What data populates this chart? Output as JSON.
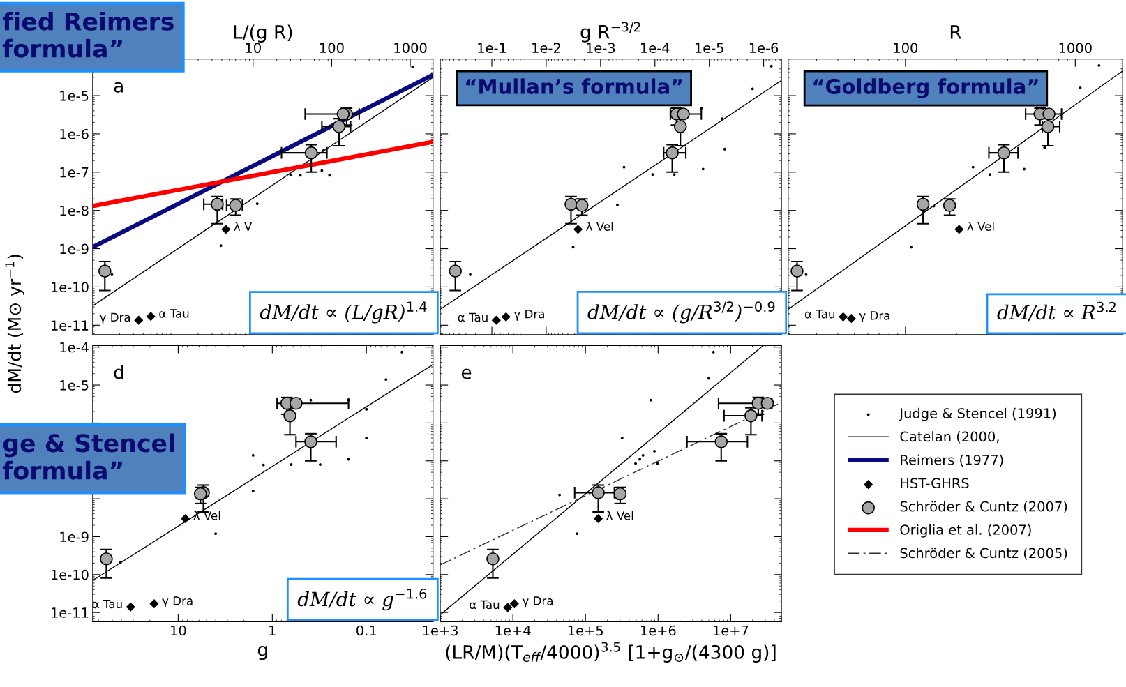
{
  "chart_data": [
    {
      "type": "scatter",
      "title": "fied Reimers\nformula”",
      "subtitle": "a",
      "xlabel": "L/(g R)",
      "ylabel": "dM/dt (M⊙ yr$^{−1}$)",
      "log": "xy",
      "legend": "right",
      "xlim": [
        0.091,
        1950
      ],
      "xticks": [
        10,
        100,
        1000
      ],
      "ylim": [
        5.7e-12,
        9e-05
      ],
      "yticks": [
        {
          "value": 1e-11,
          "label": "1e-11"
        },
        {
          "value": 1e-10,
          "label": "1e-10"
        },
        {
          "value": 1e-09,
          "label": "1e-9"
        },
        {
          "value": 1e-08,
          "label": "1e-8"
        },
        {
          "value": 1e-07,
          "label": "1e-7"
        },
        {
          "value": 1e-06,
          "label": "1e-6"
        },
        {
          "value": 1e-05,
          "label": "1e-5"
        }
      ],
      "series": [
        {
          "name": "Judge & Stencel (1991)",
          "type": "scatter",
          "marker": "circle",
          "color": "#000000",
          "x": [
            1070,
            30,
            40,
            75,
            94,
            79,
            11.3,
            3.9,
            0.16
          ],
          "values": [
            5.6e-05,
            8.5e-08,
            8.3e-08,
            1.1e-07,
            8.3e-08,
            3.7e-07,
            1.5e-08,
            1.2e-09,
            2.1e-10
          ]
        },
        {
          "name": "Catelan (2000,",
          "type": "line",
          "line_style": "solid",
          "color": "#000000",
          "x": [
            0.091,
            1950
          ],
          "values": [
            3.2e-11,
            3e-05
          ]
        },
        {
          "name": "Reimers (1977)",
          "type": "line",
          "line_style": "solid",
          "color": "#0a0a80",
          "x": [
            0.091,
            1950
          ],
          "values": [
            1.1e-09,
            3.5e-05
          ]
        },
        {
          "name": "HST-GHRS",
          "type": "scatter",
          "marker": "diamond",
          "color": "#000000",
          "x": [
            4.5,
            0.5,
            0.35
          ],
          "values": [
            3.2e-09,
            1.7e-11,
            1.35e-11
          ]
        },
        {
          "name": "Schröder & Cuntz (2007)",
          "type": "scatter",
          "marker": "circle",
          "color": "#a6a6a6",
          "x": [
            0.13,
            3.5,
            6.0,
            55,
            124,
            155,
            140
          ],
          "values": [
            2.6e-10,
            1.45e-08,
            1.35e-08,
            3.2e-07,
            1.55e-06,
            3.3e-06,
            3.3e-06
          ],
          "errors": [
            [
              8.1e-11,
              4.6e-10
            ],
            [
              4.5e-09,
              2.3e-08
            ],
            [
              7.5e-09,
              2e-08
            ],
            [
              1e-07,
              5.2e-07
            ],
            [
              4.9e-07,
              2.5e-06
            ],
            [
              1.7e-06,
              4.7e-06
            ],
            null
          ],
          "xerrors": [
            null,
            [
              2.36,
              4.1
            ],
            [
              4.6,
              7.3
            ],
            [
              23,
              87
            ],
            [
              75,
              174
            ],
            [
              46,
              224
            ],
            null
          ]
        },
        {
          "name": "Origlia et al. (2007)",
          "type": "line",
          "line_style": "solid",
          "color": "#ff0000",
          "x": [
            0.091,
            1950
          ],
          "values": [
            1.3e-08,
            6.2e-07
          ]
        }
      ],
      "annotations": [
        {
          "text": "λ V",
          "x": 4.5,
          "y": 3.2e-09
        },
        {
          "text": "α Tau",
          "x": 0.5,
          "y": 1.7e-11
        },
        {
          "text": "γ Dra",
          "x": 0.35,
          "y": 1.35e-11
        },
        "dM/dt ∝ (L/gR)$^{1.4}$"
      ]
    },
    {
      "type": "scatter",
      "title": "“Mullan’s formula”",
      "xlabel": "g R$^{−3/2}$",
      "log": "xy",
      "tick_labels": "x",
      "xlim": [
        0.89,
        4.7e-07
      ],
      "xticks": [
        {
          "value": 0.1,
          "label": "1e-1"
        },
        {
          "value": 0.01,
          "label": "1e-2"
        },
        {
          "value": 0.001,
          "label": "1e-3"
        },
        {
          "value": 0.0001,
          "label": "1e-4"
        },
        {
          "value": 1e-05,
          "label": "1e-5"
        },
        {
          "value": 1e-06,
          "label": "1e-6"
        }
      ],
      "ylim": [
        5.7e-12,
        9e-05
      ],
      "yticks": [
        1e-11,
        1e-10,
        1e-09,
        1e-08,
        1e-07,
        1e-06,
        1e-05
      ],
      "series": [
        {
          "name": "Judge & Stencel (1991)",
          "type": "scatter",
          "marker": "circle",
          "color": "#000000",
          "x": [
            7.2e-07,
            1.6e-06,
            5.8e-06,
            5.2e-06,
            1.3e-05,
            0.00037,
            0.00011,
            4.4e-05,
            0.00049,
            0.0032,
            0.25,
            1.4e-05
          ],
          "values": [
            5.9e-05,
            1.5e-05,
            2.5e-06,
            4e-07,
            1.2e-07,
            1.35e-07,
            8.7e-08,
            8.7e-08,
            1.4e-08,
            1.1e-09,
            2.1e-10,
            4.7e-06
          ]
        },
        {
          "name": "Catelan (2000,",
          "type": "line",
          "line_style": "solid",
          "color": "#000000",
          "x": [
            0.89,
            4.7e-07
          ],
          "values": [
            2.6e-11,
            2.5e-05
          ]
        },
        {
          "name": "HST-GHRS",
          "type": "scatter",
          "marker": "diamond",
          "color": "#000000",
          "x": [
            0.0026,
            0.083,
            0.055
          ],
          "values": [
            3.2e-09,
            1.35e-11,
            1.65e-11
          ]
        },
        {
          "name": "Schröder & Cuntz (2007)",
          "type": "scatter",
          "marker": "circle",
          "color": "#a6a6a6",
          "x": [
            0.47,
            0.0035,
            0.0022,
            4.8e-05,
            3.4e-05,
            4e-05,
            3e-05
          ],
          "values": [
            2.6e-10,
            1.45e-08,
            1.35e-08,
            3.2e-07,
            1.55e-06,
            3.3e-06,
            3.3e-06
          ],
          "errors": [
            [
              8.1e-11,
              4.6e-10
            ],
            [
              4.5e-09,
              2.3e-08
            ],
            [
              7.5e-09,
              2e-08
            ],
            [
              1e-07,
              5.2e-07
            ],
            [
              4.9e-07,
              2.5e-06
            ],
            [
              1.7e-06,
              4.7e-06
            ],
            null
          ],
          "xerrors": [
            null,
            null,
            null,
            [
              2.7e-05,
              6.9e-05
            ],
            null,
            [
              1.4e-05,
              5.2e-05
            ],
            null
          ]
        }
      ],
      "annotations": [
        {
          "text": "λ Vel",
          "x": 0.0026,
          "y": 3.2e-09
        },
        {
          "text": "α Tau",
          "x": 0.083,
          "y": 1.35e-11
        },
        {
          "text": "γ Dra",
          "x": 0.055,
          "y": 1.65e-11
        },
        "dM/dt ∝ (g/R$^{3/2}$)$^{−0.9}$"
      ]
    },
    {
      "type": "scatter",
      "title": "“Goldberg formula”",
      "xlabel": "R",
      "log": "xy",
      "tick_labels": "x",
      "xlim": [
        20.4,
        1900
      ],
      "xticks": [
        100,
        1000
      ],
      "ylim": [
        5.7e-12,
        9e-05
      ],
      "yticks": [
        1e-11,
        1e-10,
        1e-09,
        1e-08,
        1e-07,
        1e-06,
        1e-05
      ],
      "series": [
        {
          "name": "Judge & Stencel (1991)",
          "type": "scatter",
          "marker": "circle",
          "color": "#000000",
          "x": [
            1380,
            1070,
            660,
            250,
            315,
            500,
            108,
            26,
            147
          ],
          "values": [
            6.1e-05,
            1.6e-05,
            4.4e-07,
            1.35e-07,
            8.7e-08,
            1.2e-07,
            1.1e-09,
            2.1e-10,
            1.3e-08
          ]
        },
        {
          "name": "Catelan (2000,",
          "type": "line",
          "line_style": "solid",
          "color": "#000000",
          "x": [
            20.4,
            1900
          ],
          "values": [
            2.6e-11,
            4.4e-05
          ]
        },
        {
          "name": "HST-GHRS",
          "type": "scatter",
          "marker": "diamond",
          "color": "#000000",
          "x": [
            207,
            43,
            48
          ],
          "values": [
            3.2e-09,
            1.65e-11,
            1.5e-11
          ]
        },
        {
          "name": "Schröder & Cuntz (2007)",
          "type": "scatter",
          "marker": "circle",
          "color": "#a6a6a6",
          "x": [
            23,
            127,
            182,
            380,
            690,
            620,
            700
          ],
          "values": [
            2.6e-10,
            1.45e-08,
            1.35e-08,
            3.2e-07,
            1.55e-06,
            3.3e-06,
            3.3e-06
          ],
          "errors": [
            [
              8.1e-11,
              4.6e-10
            ],
            [
              4.5e-09,
              2.3e-08
            ],
            [
              7.5e-09,
              2e-08
            ],
            [
              1e-07,
              5.2e-07
            ],
            [
              4.9e-07,
              2.5e-06
            ],
            [
              1.7e-06,
              4.7e-06
            ],
            null
          ],
          "xerrors": [
            null,
            null,
            null,
            [
              310,
              460
            ],
            [
              640,
              810
            ],
            [
              510,
              830
            ],
            null
          ]
        }
      ],
      "annotations": [
        {
          "text": "λ Vel",
          "x": 207,
          "y": 3.2e-09
        },
        {
          "text": "α Tau",
          "x": 43,
          "y": 1.65e-11
        },
        {
          "text": "γ Dra",
          "x": 48,
          "y": 1.5e-11
        },
        "dM/dt ∝ R$^{3.2}$"
      ]
    },
    {
      "type": "scatter",
      "title": "ge & Stencel\nformula”",
      "subtitle": "d",
      "xlabel": "g",
      "log": "xy",
      "xlim": [
        81,
        0.0196
      ],
      "xticks": [
        10,
        1,
        0.1
      ],
      "ylim": [
        5.7e-12,
        0.00011
      ],
      "yticks": [
        {
          "value": 1e-11,
          "label": "1e-11"
        },
        {
          "value": 1e-10,
          "label": "1e-10"
        },
        {
          "value": 1e-09,
          "label": "1e-9"
        },
        {
          "value": 1e-08,
          "label": null
        },
        {
          "value": 1e-07,
          "label": null
        },
        {
          "value": 1e-06,
          "label": null
        },
        {
          "value": 1e-05,
          "label": "1e-5"
        },
        {
          "value": 0.0001,
          "label": "1e-4"
        }
      ],
      "series": [
        {
          "name": "Judge & Stencel (1991)",
          "type": "scatter",
          "marker": "circle",
          "color": "#000000",
          "x": [
            0.042,
            0.062,
            0.1,
            0.155,
            0.1,
            0.155,
            1.6,
            1.24,
            0.63,
            0.31,
            0.39,
            1.6,
            4,
            41
          ],
          "values": [
            7.4e-05,
            1.4e-05,
            2.3e-06,
            4e-06,
            4e-07,
            1.1e-07,
            1.4e-07,
            7.8e-08,
            8e-08,
            8e-08,
            4e-06,
            1.6e-08,
            1.2e-09,
            2.1e-10
          ]
        },
        {
          "name": "Catelan (2000,",
          "type": "line",
          "line_style": "solid",
          "color": "#000000",
          "x": [
            81,
            0.0196
          ],
          "values": [
            7e-11,
            3.5e-05
          ]
        },
        {
          "name": "HST-GHRS",
          "type": "scatter",
          "marker": "diamond",
          "color": "#000000",
          "x": [
            8.4,
            32,
            18
          ],
          "values": [
            3e-09,
            1.4e-11,
            1.7e-11
          ]
        },
        {
          "name": "Schröder & Cuntz (2007)",
          "type": "scatter",
          "marker": "circle",
          "color": "#a6a6a6",
          "x": [
            58,
            5.4,
            5.8,
            0.39,
            0.65,
            0.7,
            0.56
          ],
          "values": [
            2.6e-10,
            1.45e-08,
            1.35e-08,
            3.2e-07,
            1.55e-06,
            3.3e-06,
            3.3e-06
          ],
          "errors": [
            [
              8.1e-11,
              4.6e-10
            ],
            [
              4.5e-09,
              2.3e-08
            ],
            [
              7.5e-09,
              2e-08
            ],
            [
              1e-07,
              5.2e-07
            ],
            [
              4.9e-07,
              2.5e-06
            ],
            [
              1.7e-06,
              4.7e-06
            ],
            null
          ],
          "xerrors": [
            null,
            null,
            null,
            [
              0.21,
              0.56
            ],
            null,
            [
              0.155,
              0.89
            ],
            null
          ]
        }
      ],
      "annotations": [
        {
          "text": "λ Vel",
          "x": 8.4,
          "y": 3e-09
        },
        {
          "text": "α Tau",
          "x": 32,
          "y": 1.4e-11
        },
        {
          "text": "γ Dra",
          "x": 18,
          "y": 1.7e-11
        },
        "dM/dt ∝ g$^{−1.6}$"
      ]
    },
    {
      "type": "scatter",
      "subtitle": "e",
      "xlabel": "(LR/M)(T$_{eff}$/4000)$^{3.5}$ [1+g$_{⊙}$/(4300 g)]",
      "log": "xy",
      "tick_labels": "x",
      "legend": "right",
      "xlim": [
        1000,
        50000000.0
      ],
      "xticks": [
        {
          "value": 1000,
          "label": "1e+3"
        },
        {
          "value": 10000,
          "label": "1e+4"
        },
        {
          "value": 100000,
          "label": "1e+5"
        },
        {
          "value": 1000000,
          "label": "1e+6"
        },
        {
          "value": 10000000,
          "label": "1e+7"
        }
      ],
      "ylim": [
        5.7e-12,
        0.00011
      ],
      "yticks": [
        1e-11,
        1e-10,
        1e-09,
        1e-08,
        1e-07,
        1e-06,
        1e-05,
        0.0001
      ],
      "series": [
        {
          "name": "Judge & Stencel (1991)",
          "type": "scatter",
          "marker": "circle",
          "color": "#000000",
          "x": [
            44000,
            76000,
            320000,
            620000,
            490000,
            560000,
            790000,
            890000,
            980000,
            5000000,
            5800000
          ],
          "values": [
            1.26e-08,
            1.2e-09,
            4e-07,
            1.4e-07,
            8.5e-08,
            1.1e-07,
            4e-06,
            1.8e-07,
            8.5e-08,
            1.5e-05,
            7.4e-05
          ]
        },
        {
          "name": "Catelan (2000,",
          "type": "line",
          "line_style": "solid",
          "color": "#000000",
          "x": [
            1000,
            28000000
          ],
          "values": [
            8.7e-12,
            0.00011
          ]
        },
        {
          "name": "HST-GHRS",
          "type": "scatter",
          "marker": "diamond",
          "color": "#000000",
          "x": [
            150000,
            8500,
            10500
          ],
          "values": [
            3e-09,
            1.35e-11,
            1.7e-11
          ]
        },
        {
          "name": "Schröder & Cuntz (2007)",
          "type": "scatter",
          "marker": "circle",
          "color": "#a6a6a6",
          "x": [
            5300,
            150000,
            300000,
            7400000,
            19000000,
            24000000,
            32000000
          ],
          "values": [
            2.6e-10,
            1.45e-08,
            1.35e-08,
            3.2e-07,
            1.55e-06,
            3.3e-06,
            3.3e-06
          ],
          "errors": [
            [
              8.1e-11,
              4.6e-10
            ],
            [
              4.5e-09,
              2.3e-08
            ],
            [
              7.5e-09,
              2e-08
            ],
            [
              1e-07,
              5.2e-07
            ],
            [
              4.9e-07,
              2.5e-06
            ],
            [
              1.7e-06,
              4.7e-06
            ],
            null
          ],
          "xerrors": [
            null,
            [
              71000,
              250000
            ],
            null,
            [
              2500000,
              17000000
            ],
            [
              8100000,
              27000000
            ],
            [
              6800000,
              37000000
            ],
            null
          ]
        },
        {
          "name": "Schröder & Cuntz (2005)",
          "type": "line",
          "line_style": "dashed",
          "color": "#303030",
          "x": [
            1000,
            50000000.0
          ],
          "values": [
            1.8e-10,
            3.5e-06
          ]
        }
      ],
      "annotations": [
        {
          "text": "λ Vel",
          "x": 150000,
          "y": 3e-09
        },
        {
          "text": "α Tau",
          "x": 8500,
          "y": 1.35e-11
        },
        {
          "text": "γ Dra",
          "x": 10500,
          "y": 1.7e-11
        }
      ]
    }
  ]
}
